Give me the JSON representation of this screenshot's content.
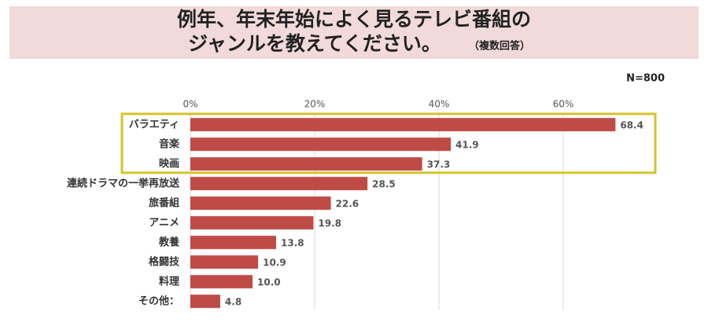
{
  "chart_data": {
    "type": "bar",
    "orientation": "horizontal",
    "title": [
      "例年、年末年始によく見るテレビ番組の",
      "ジャンルを教えてください。"
    ],
    "subtitle": "（複数回答）",
    "note": "N=800",
    "categories": [
      "バラエティ",
      "音楽",
      "映画",
      "連続ドラマの一挙再放送",
      "旅番組",
      "アニメ",
      "教養",
      "格闘技",
      "料理",
      "その他："
    ],
    "values": [
      68.4,
      41.9,
      37.3,
      28.5,
      22.6,
      19.8,
      13.8,
      10.9,
      10.0,
      4.8
    ],
    "value_labels": [
      "68.4",
      "41.9",
      "37.3",
      "28.5",
      "22.6",
      "19.8",
      "13.8",
      "10.9",
      "10.0",
      "4.8"
    ],
    "color": "#bf4b47",
    "xlim": [
      0,
      80
    ],
    "xticks": [
      {
        "value": 0,
        "label": "0%"
      },
      {
        "value": 20,
        "label": "20%"
      },
      {
        "value": 40,
        "label": "40%"
      },
      {
        "value": 60,
        "label": "60%"
      }
    ],
    "grid": true
  }
}
